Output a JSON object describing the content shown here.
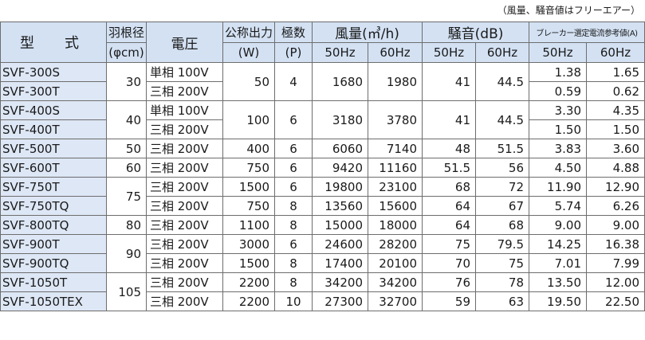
{
  "note": "（風量、騒音値はフリーエアー）",
  "headers": {
    "model": "型　式",
    "blade_top": "羽根径",
    "blade_bottom": "(φcm)",
    "voltage": "電圧",
    "output_top": "公称出力",
    "output_bottom": "(W)",
    "poles_top": "極数",
    "poles_bottom": "(P)",
    "airflow": "風量(㎥/h)",
    "noise": "騒音(dB)",
    "breaker": "ブレーカー選定電流参考値(A)",
    "hz50": "50Hz",
    "hz60": "60Hz"
  },
  "rows": [
    {
      "model": "SVF-300S",
      "blade": "30",
      "voltage": "単相 100V",
      "output": "50",
      "poles": "4",
      "af50": "1680",
      "af60": "1980",
      "n50": "41",
      "n60": "44.5",
      "b50": "1.38",
      "b60": "1.65"
    },
    {
      "model": "SVF-300T",
      "voltage": "三相 200V",
      "b50": "0.59",
      "b60": "0.62"
    },
    {
      "model": "SVF-400S",
      "blade": "40",
      "voltage": "単相 100V",
      "output": "100",
      "poles": "6",
      "af50": "3180",
      "af60": "3780",
      "n50": "41",
      "n60": "44.5",
      "b50": "3.30",
      "b60": "4.35"
    },
    {
      "model": "SVF-400T",
      "voltage": "三相 200V",
      "b50": "1.50",
      "b60": "1.50"
    },
    {
      "model": "SVF-500T",
      "blade": "50",
      "voltage": "三相 200V",
      "output": "400",
      "poles": "6",
      "af50": "6060",
      "af60": "7140",
      "n50": "48",
      "n60": "51.5",
      "b50": "3.83",
      "b60": "3.60"
    },
    {
      "model": "SVF-600T",
      "blade": "60",
      "voltage": "三相 200V",
      "output": "750",
      "poles": "6",
      "af50": "9420",
      "af60": "11160",
      "n50": "51.5",
      "n60": "56",
      "b50": "4.50",
      "b60": "4.88"
    },
    {
      "model": "SVF-750T",
      "blade": "75",
      "voltage": "三相 200V",
      "output": "1500",
      "poles": "6",
      "af50": "19800",
      "af60": "23100",
      "n50": "68",
      "n60": "72",
      "b50": "11.90",
      "b60": "12.90"
    },
    {
      "model": "SVF-750TQ",
      "voltage": "三相 200V",
      "output": "750",
      "poles": "8",
      "af50": "13560",
      "af60": "15600",
      "n50": "64",
      "n60": "67",
      "b50": "5.74",
      "b60": "6.26"
    },
    {
      "model": "SVF-800TQ",
      "blade": "80",
      "voltage": "三相 200V",
      "output": "1100",
      "poles": "8",
      "af50": "15000",
      "af60": "18000",
      "n50": "64",
      "n60": "68",
      "b50": "9.00",
      "b60": "9.00"
    },
    {
      "model": "SVF-900T",
      "blade": "90",
      "voltage": "三相 200V",
      "output": "3000",
      "poles": "6",
      "af50": "24600",
      "af60": "28200",
      "n50": "75",
      "n60": "79.5",
      "b50": "14.25",
      "b60": "16.38"
    },
    {
      "model": "SVF-900TQ",
      "voltage": "三相 200V",
      "output": "1500",
      "poles": "8",
      "af50": "17400",
      "af60": "20100",
      "n50": "70",
      "n60": "75",
      "b50": "7.01",
      "b60": "7.99"
    },
    {
      "model": "SVF-1050T",
      "blade": "105",
      "voltage": "三相 200V",
      "output": "2200",
      "poles": "8",
      "af50": "34200",
      "af60": "34200",
      "n50": "76",
      "n60": "78",
      "b50": "13.50",
      "b60": "12.00"
    },
    {
      "model": "SVF-1050TEX",
      "voltage": "三相 200V",
      "output": "2200",
      "poles": "10",
      "af50": "27300",
      "af60": "32700",
      "n50": "59",
      "n60": "63",
      "b50": "19.50",
      "b60": "22.50"
    }
  ]
}
